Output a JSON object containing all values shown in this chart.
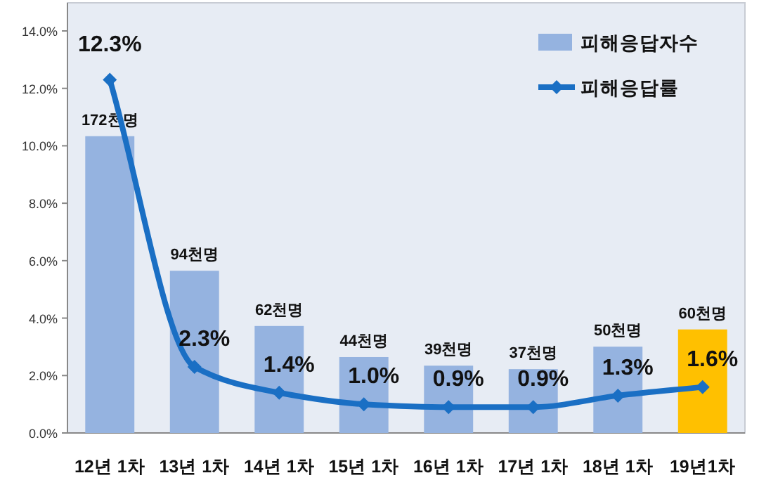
{
  "chart_data": {
    "type": "bar",
    "categories": [
      "12년 1차",
      "13년 1차",
      "14년 1차",
      "15년 1차",
      "16년 1차",
      "17년 1차",
      "18년 1차",
      "19년1차"
    ],
    "series": [
      {
        "name": "피해응답자수",
        "axis": "y2",
        "color": "#95b3e0",
        "colors": [
          "#95b3e0",
          "#95b3e0",
          "#95b3e0",
          "#95b3e0",
          "#95b3e0",
          "#95b3e0",
          "#95b3e0",
          "#ffc000"
        ],
        "values": [
          172,
          94,
          62,
          44,
          39,
          37,
          50,
          60
        ],
        "value_labels": [
          "172천명",
          "94천명",
          "62천명",
          "44천명",
          "39천명",
          "37천명",
          "50천명",
          "60천명"
        ]
      },
      {
        "name": "피해응답률",
        "type": "line",
        "axis": "y",
        "color": "#1a6fc4",
        "marker": "diamond",
        "values": [
          12.3,
          2.3,
          1.4,
          1.0,
          0.9,
          0.9,
          1.3,
          1.6
        ],
        "value_labels": [
          "12.3%",
          "2.3%",
          "1.4%",
          "1.0%",
          "0.9%",
          "0.9%",
          "1.3%",
          "1.6%"
        ]
      }
    ],
    "ylim": [
      0,
      14
    ],
    "yticks": [
      {
        "value": 0,
        "label": "0.0%"
      },
      {
        "value": 2,
        "label": "2.0%"
      },
      {
        "value": 4,
        "label": "4.0%"
      },
      {
        "value": 6,
        "label": "6.0%"
      },
      {
        "value": 8,
        "label": "8.0%"
      },
      {
        "value": 10,
        "label": "10.0%"
      },
      {
        "value": 12,
        "label": "12.0%"
      },
      {
        "value": 14,
        "label": "14.0%"
      }
    ],
    "y2lim": [
      0,
      233
    ],
    "legend": "top right",
    "grid": false
  }
}
